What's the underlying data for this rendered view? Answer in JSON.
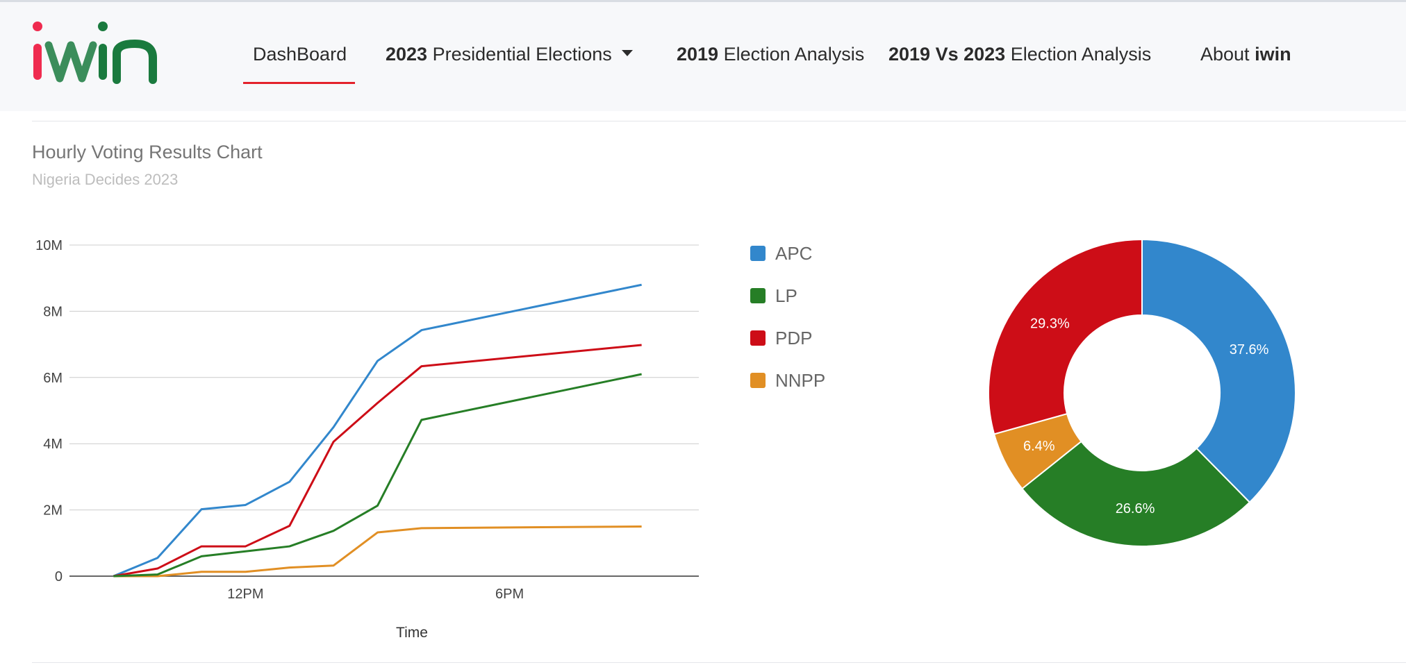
{
  "brand": {
    "logo_text": "iwin",
    "colors": {
      "i": "#ef2b4f",
      "win": "#1a7a3e"
    }
  },
  "nav": {
    "dashboard": "DashBoard",
    "presidential": {
      "bold": "2023",
      "rest": "Presidential Elections"
    },
    "analysis_2019": {
      "bold": "2019",
      "rest": "Election Analysis"
    },
    "analysis_vs": {
      "bold": "2019 Vs 2023",
      "rest": "Election Analysis"
    },
    "about": {
      "rest": "About",
      "bold": "iwin"
    },
    "active_color": "#e3212b"
  },
  "chart": {
    "title": "Hourly Voting Results Chart",
    "subtitle": "Nigeria Decides 2023"
  },
  "chart_data": [
    {
      "type": "line",
      "title": "Hourly Voting Results Chart",
      "subtitle": "Nigeria Decides 2023",
      "xlabel": "Time",
      "ylabel": "",
      "x": [
        8,
        9,
        10,
        11,
        12,
        13,
        14,
        15,
        20
      ],
      "x_ticks": [
        {
          "value": 11,
          "label": "12PM"
        },
        {
          "value": 17,
          "label": "6PM"
        }
      ],
      "xlim": [
        7,
        21.3
      ],
      "ylim": [
        0,
        10000000
      ],
      "y_ticks": [
        {
          "value": 0,
          "label": "0"
        },
        {
          "value": 2000000,
          "label": "2M"
        },
        {
          "value": 4000000,
          "label": "4M"
        },
        {
          "value": 6000000,
          "label": "6M"
        },
        {
          "value": 8000000,
          "label": "8M"
        },
        {
          "value": 10000000,
          "label": "10M"
        }
      ],
      "grid": true,
      "legend_position": "right",
      "series": [
        {
          "name": "APC",
          "color": "#3287cc",
          "values": [
            0,
            550000,
            2020000,
            2150000,
            2850000,
            4500000,
            6500000,
            7430000,
            8800000
          ]
        },
        {
          "name": "LP",
          "color": "#267e26",
          "values": [
            0,
            50000,
            600000,
            750000,
            900000,
            1370000,
            2130000,
            4720000,
            6100000
          ]
        },
        {
          "name": "PDP",
          "color": "#cd0d17",
          "values": [
            0,
            230000,
            900000,
            900000,
            1520000,
            4060000,
            5230000,
            6340000,
            6980000
          ]
        },
        {
          "name": "NNPP",
          "color": "#e18f24",
          "values": [
            0,
            0,
            130000,
            130000,
            260000,
            320000,
            1320000,
            1450000,
            1500000
          ]
        }
      ]
    },
    {
      "type": "pie",
      "donut": true,
      "labels": [
        "APC",
        "LP",
        "NNPP",
        "PDP"
      ],
      "values": [
        37.6,
        26.6,
        6.4,
        29.3
      ],
      "value_labels": [
        "37.6%",
        "26.6%",
        "6.4%",
        "29.3%"
      ],
      "colors": [
        "#3287cc",
        "#267e26",
        "#e18f24",
        "#cd0d17"
      ]
    }
  ]
}
